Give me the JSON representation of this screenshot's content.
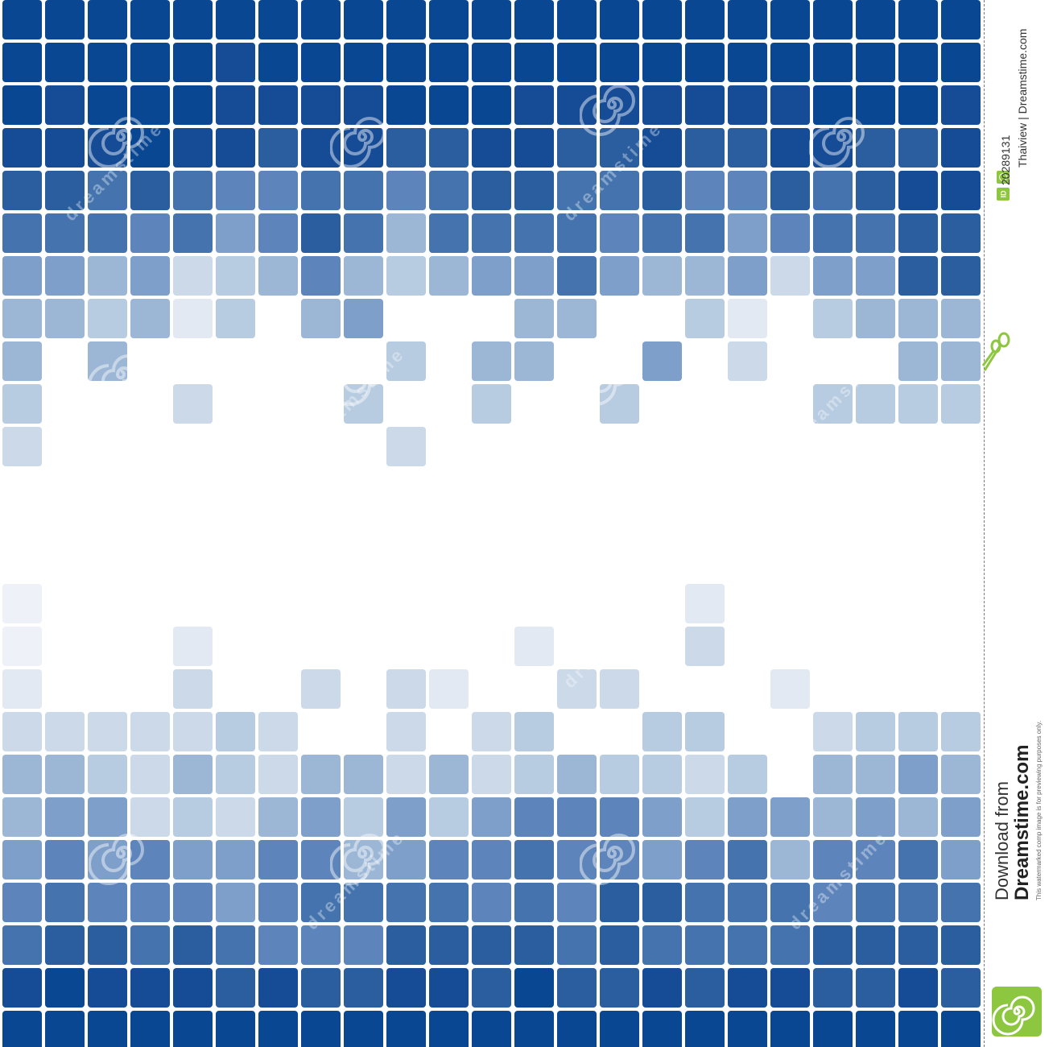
{
  "image": {
    "colors": {
      "background": "#ffffff",
      "tile_levels": [
        "#ffffff",
        "#eef2f8",
        "#e2e9f3",
        "#cbd9e9",
        "#b7cbe1",
        "#9cb6d6",
        "#7f9fcb",
        "#5e85bb",
        "#4473ae",
        "#2a5e9f",
        "#154c95",
        "#0a4793"
      ]
    },
    "mosaic": {
      "columns": 23,
      "rows": 24,
      "levels_top": [
        "BBBBBBBBBBBBBBBBBBBBBBB",
        "BBBBBABBBBBBBBBBBBBBBBB",
        "BABBBAAAABBBAAAAAAABBBA",
        "AAABAA9AA99AA99A99AA99A",
        "998987788789988977989AA",
        "88878679858888788678899",
        "665634575456686556366998",
        "5545240560005500420455505",
        "505000000405500603000555",
        "40003000400400400004444",
        "3000000003000000000000000"
      ],
      "levels_bottom": [
        "100000000000000020000002",
        "100020000000200030000003",
        "200030030320033000200004",
        "3333343003034004400344444",
        "5543543553534544340556545",
        "566343564646777646656566",
        "6767667756778776785778667",
        "7877767888878799888788888",
        "899898777999989888899999",
        "ABAAA9A99AA9B99A9AA99A9",
        "BBBBBBBBBBBBBBBBBBBBBBB",
        "BBBBBBBBBBBBBBBBBBBBBBB"
      ]
    },
    "watermark": {
      "site": "dreamstime",
      "spiral_icon": "spiral-logo-icon",
      "text_mark": "dreamstime"
    }
  },
  "side_strip": {
    "image_id_label": "ID",
    "image_id": "20289131",
    "author_line": "Thaiview | Dreamstime.com",
    "download_line": "Download from",
    "site_name": "Dreamstime.com",
    "fine_print": "This watermarked comp image is for previewing purposes only.",
    "cut_icon": "scissors-icon",
    "logo_icon": "spiral-logo-icon"
  }
}
